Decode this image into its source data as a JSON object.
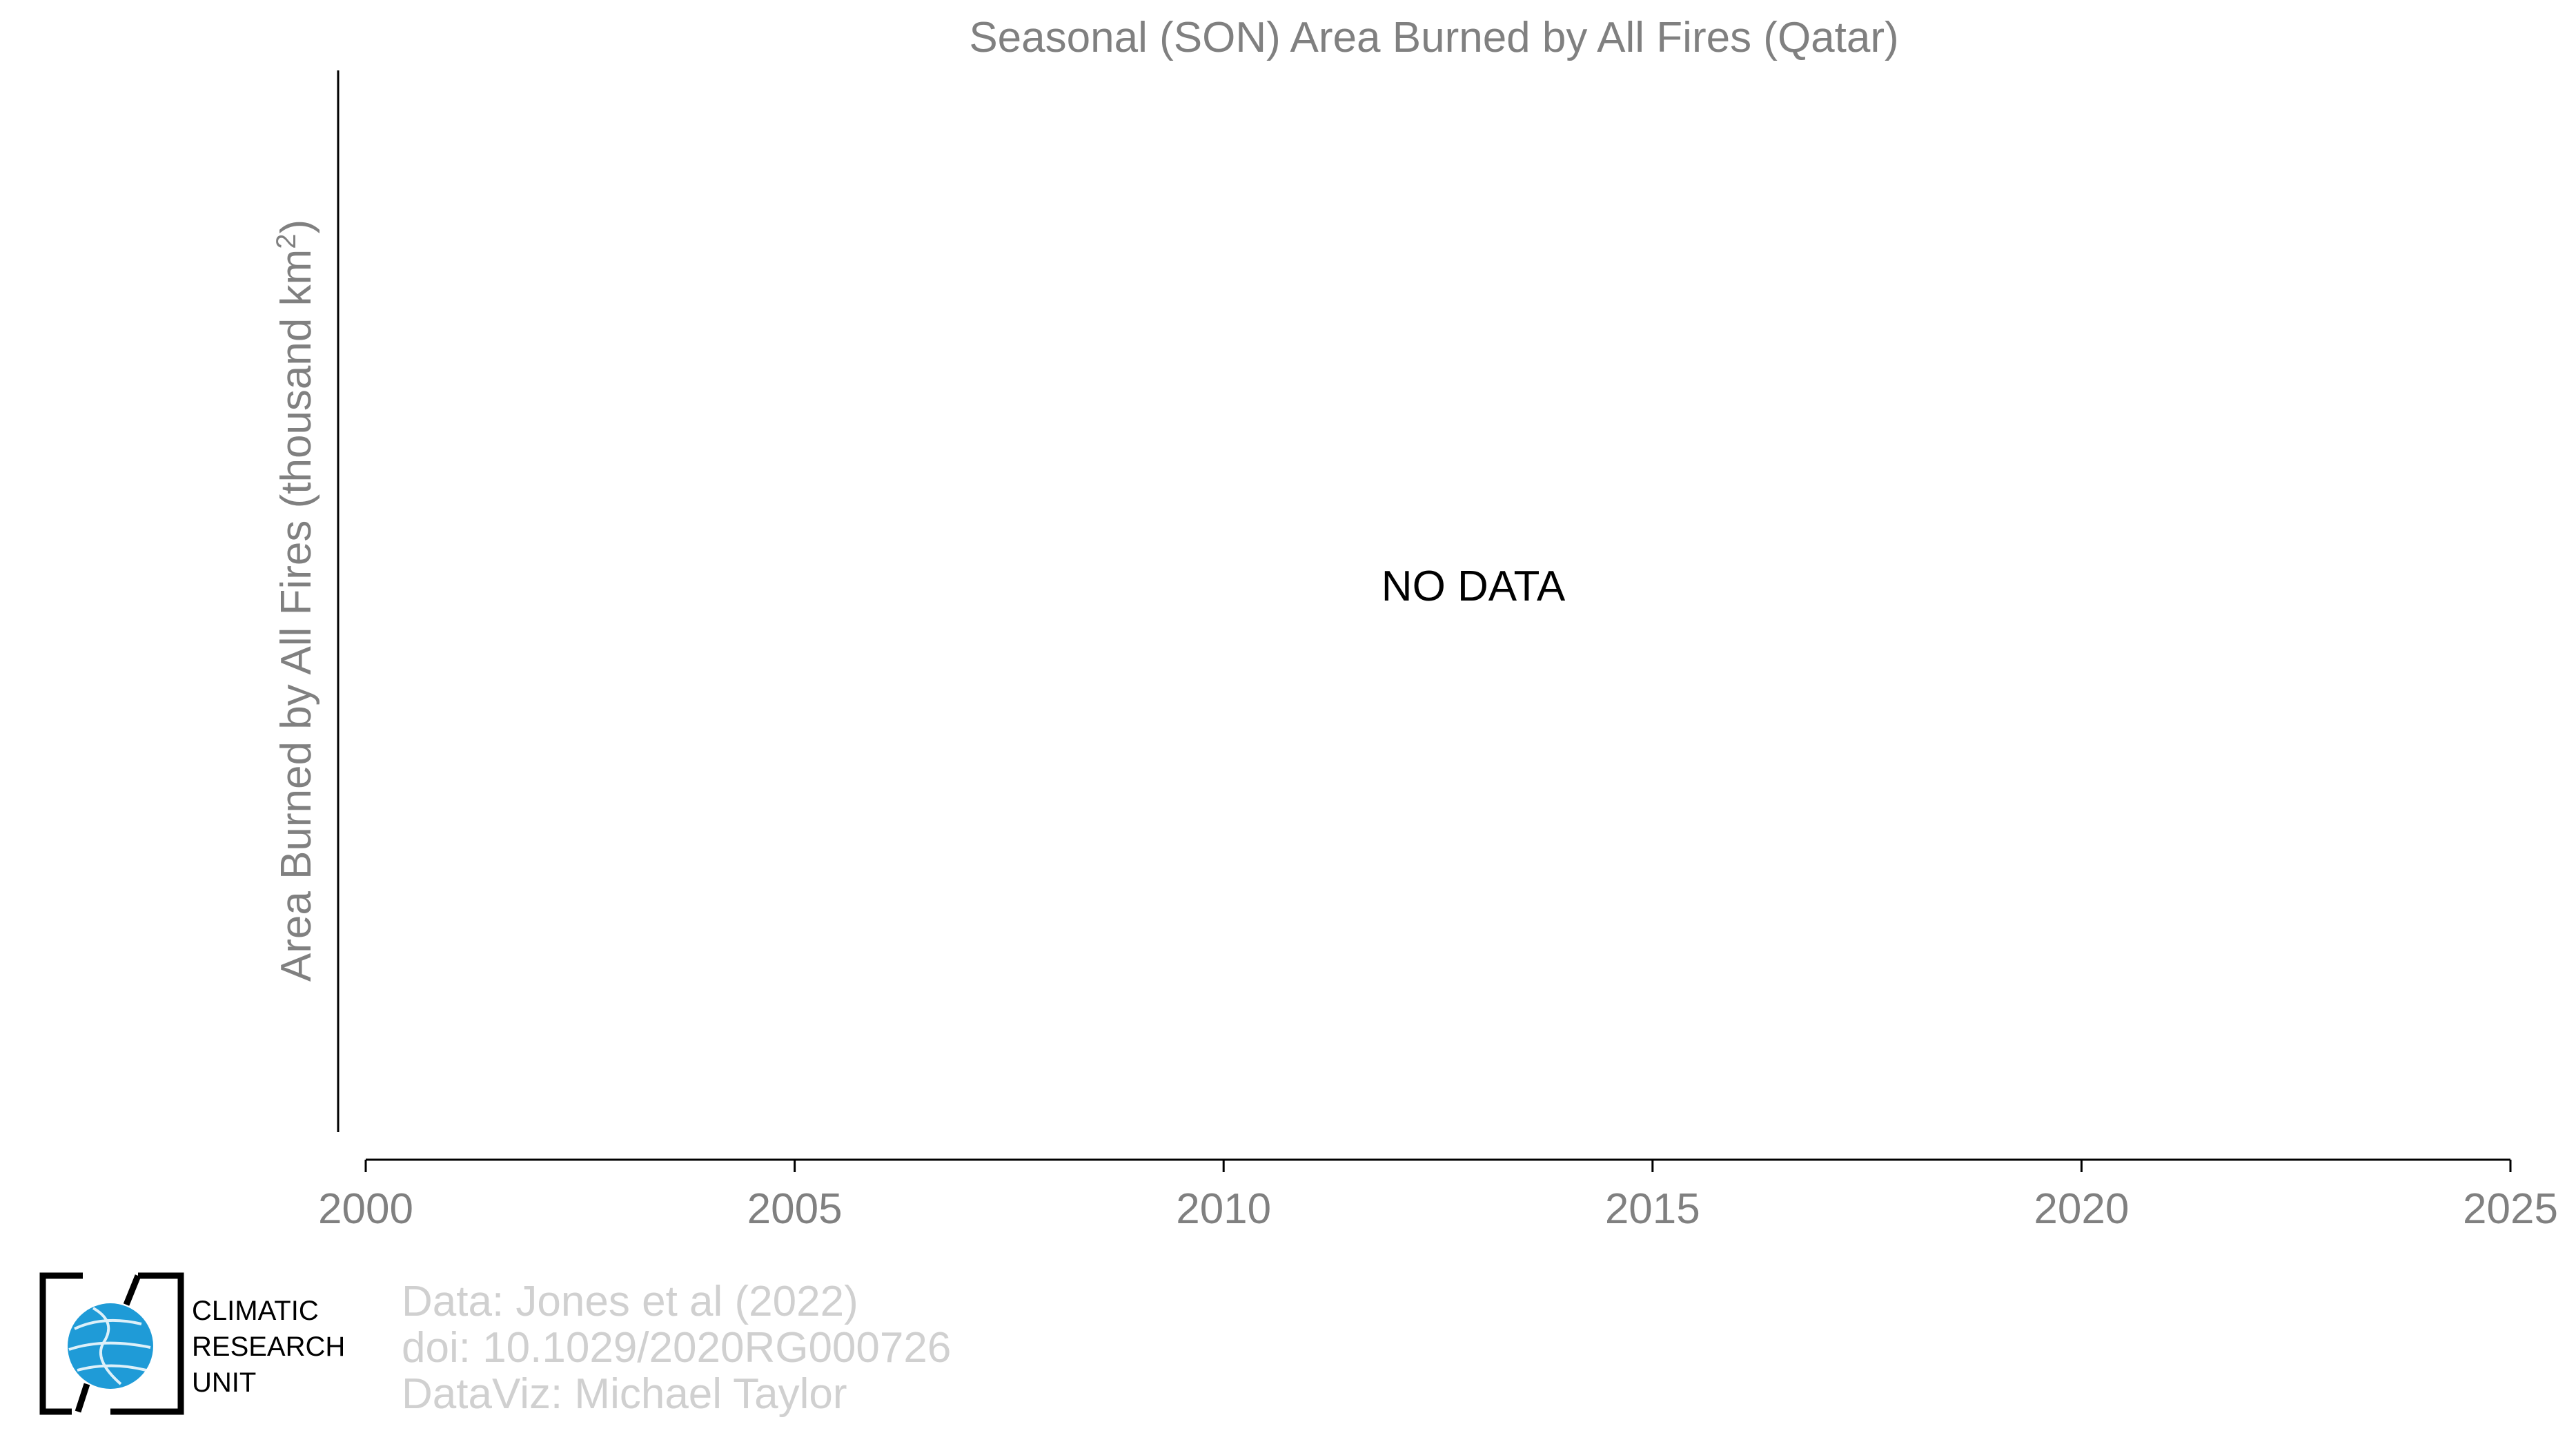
{
  "chart_data": {
    "type": "line",
    "title": "Seasonal (SON) Area Burned by All Fires (Qatar)",
    "ylabel": "Area Burned by All Fires (thousand km",
    "ylabel_superscript": "2",
    "ylabel_close": ")",
    "xlabel": "",
    "xlim": [
      2000,
      2025
    ],
    "xticks": [
      "2000",
      "2005",
      "2010",
      "2015",
      "2020",
      "2025"
    ],
    "series": [],
    "annotation": "NO DATA",
    "grid": false
  },
  "credits": {
    "line1": "Data: Jones et al (2022)",
    "line2": "doi: 10.1029/2020RG000726",
    "line3": "DataViz: Michael Taylor"
  },
  "logo": {
    "line1": "CLIMATIC",
    "line2": "RESEARCH",
    "line3": "UNIT",
    "icon": "cru-globe-logo",
    "globe_color": "#1f9bd7"
  }
}
